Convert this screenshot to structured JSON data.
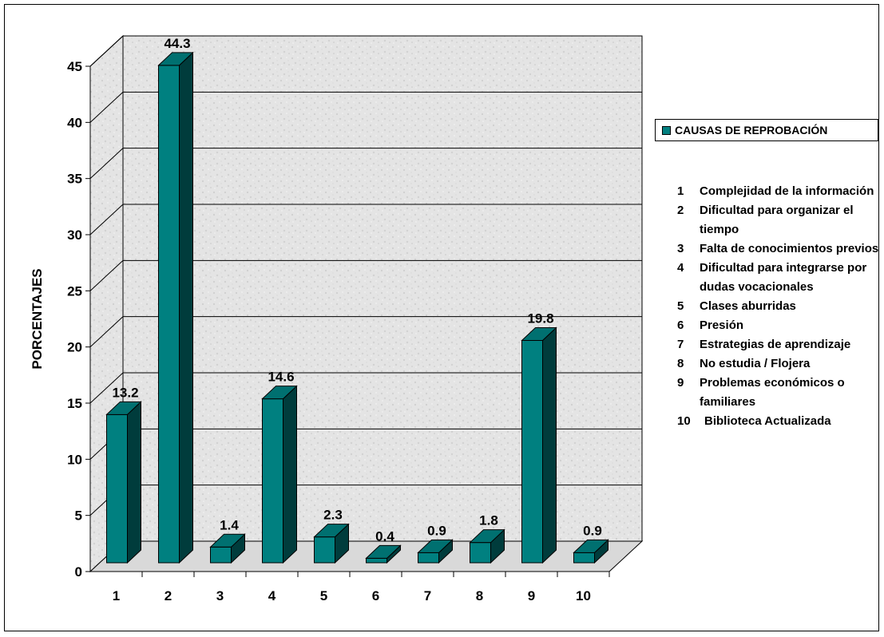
{
  "chart_data": {
    "type": "bar",
    "categories": [
      "1",
      "2",
      "3",
      "4",
      "5",
      "6",
      "7",
      "8",
      "9",
      "10"
    ],
    "values": [
      13.2,
      44.3,
      1.4,
      14.6,
      2.3,
      0.4,
      0.9,
      1.8,
      19.8,
      0.9
    ],
    "data_labels": [
      "13.2",
      "44.3",
      "1.4",
      "14.6",
      "2.3",
      "0.4",
      "0.9",
      "1.8",
      "19.8",
      "0.9"
    ],
    "ylabel": "PORCENTAJES",
    "ylim": [
      0,
      45
    ],
    "yticks": [
      "0",
      "5",
      "10",
      "15",
      "20",
      "25",
      "30",
      "35",
      "40",
      "45"
    ],
    "legend": [
      "CAUSAS DE REPROBACIÓN"
    ],
    "legend_position": "right",
    "grid": true,
    "three_d": true,
    "bar_color": "#008080",
    "bar_side_color": "#003c3c",
    "bar_top_color": "#007070"
  },
  "legend_label": "CAUSAS DE REPROBACIÓN",
  "notes": [
    {
      "num": "1",
      "text": "Complejidad de la información"
    },
    {
      "num": "2",
      "text": "Dificultad para organizar el tiempo"
    },
    {
      "num": "3",
      "text": "Falta de conocimientos previos"
    },
    {
      "num": "4",
      "text": "Dificultad para integrarse por dudas vocacionales"
    },
    {
      "num": "5",
      "text": "Clases aburridas"
    },
    {
      "num": "6",
      "text": "Presión"
    },
    {
      "num": "7",
      "text": "Estrategias de aprendizaje"
    },
    {
      "num": "8",
      "text": "No estudia / Flojera"
    },
    {
      "num": "9",
      "text": "Problemas económicos o familiares"
    },
    {
      "num": "10",
      "text": "Biblioteca Actualizada"
    }
  ]
}
